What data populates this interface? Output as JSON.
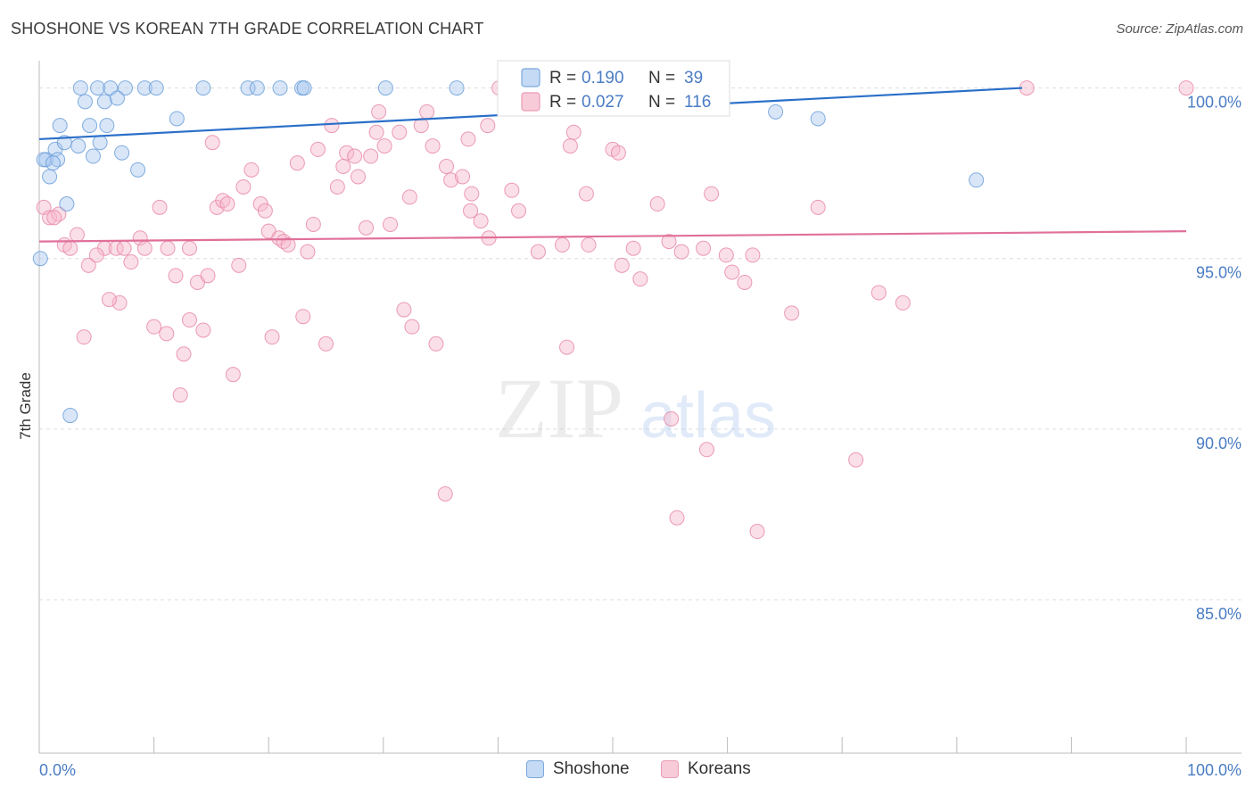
{
  "title": "SHOSHONE VS KOREAN 7TH GRADE CORRELATION CHART",
  "source": "Source: ZipAtlas.com",
  "watermark": {
    "zip": "ZIP",
    "atlas": "atlas"
  },
  "colors": {
    "shoshone_fill": "#a9c8f0",
    "shoshone_stroke": "#6c9fd8",
    "shoshone_line": "#2a6fc9",
    "korean_fill": "#f6b8cc",
    "korean_stroke": "#e889a8",
    "korean_line": "#e0709a",
    "tick_label": "#4a7cc4",
    "grid": "#dddddd"
  },
  "legend_top": [
    {
      "series": "shoshone",
      "r_label": "R =",
      "r_value": "0.190",
      "n_label": "N =",
      "n_value": "39"
    },
    {
      "series": "korean",
      "r_label": "R =",
      "r_value": "0.027",
      "n_label": "N =",
      "n_value": "116"
    }
  ],
  "legend_bottom": [
    {
      "series": "shoshone",
      "label": "Shoshone"
    },
    {
      "series": "korean",
      "label": "Koreans"
    }
  ],
  "chart_data": {
    "type": "scatter",
    "title": "SHOSHONE VS KOREAN 7TH GRADE CORRELATION CHART",
    "xlabel": "",
    "ylabel": "7th Grade",
    "xlim": [
      0,
      100
    ],
    "ylim": [
      80.5,
      100.8
    ],
    "x_tick_labels": [
      {
        "value": 0,
        "label": "0.0%"
      },
      {
        "value": 100,
        "label": "100.0%"
      }
    ],
    "y_tick_labels": [
      {
        "value": 100,
        "label": "100.0%"
      },
      {
        "value": 95,
        "label": "95.0%"
      },
      {
        "value": 90,
        "label": "90.0%"
      },
      {
        "value": 85,
        "label": "85.0%"
      }
    ],
    "grid": true,
    "legend_position": "top-center",
    "series": [
      {
        "name": "Shoshone",
        "r": 0.19,
        "n": 39,
        "trend": {
          "x": [
            0,
            85.7
          ],
          "y": [
            98.5,
            100.0
          ]
        },
        "points": [
          [
            3.6,
            100.0
          ],
          [
            5.1,
            100.0
          ],
          [
            6.2,
            100.0
          ],
          [
            7.5,
            100.0
          ],
          [
            9.2,
            100.0
          ],
          [
            10.2,
            100.0
          ],
          [
            14.3,
            100.0
          ],
          [
            18.2,
            100.0
          ],
          [
            19.0,
            100.0
          ],
          [
            21.0,
            100.0
          ],
          [
            22.9,
            100.0
          ],
          [
            23.1,
            100.0
          ],
          [
            30.2,
            100.0
          ],
          [
            36.4,
            100.0
          ],
          [
            4.0,
            99.6
          ],
          [
            5.7,
            99.6
          ],
          [
            6.8,
            99.7
          ],
          [
            12.0,
            99.1
          ],
          [
            64.2,
            99.3
          ],
          [
            67.9,
            99.1
          ],
          [
            1.8,
            98.9
          ],
          [
            4.4,
            98.9
          ],
          [
            5.9,
            98.9
          ],
          [
            1.4,
            98.2
          ],
          [
            2.2,
            98.4
          ],
          [
            3.4,
            98.3
          ],
          [
            5.3,
            98.4
          ],
          [
            0.6,
            97.9
          ],
          [
            1.6,
            97.9
          ],
          [
            4.7,
            98.0
          ],
          [
            7.2,
            98.1
          ],
          [
            8.6,
            97.6
          ],
          [
            0.9,
            97.4
          ],
          [
            81.7,
            97.3
          ],
          [
            2.4,
            96.6
          ],
          [
            0.1,
            95.0
          ],
          [
            2.7,
            90.4
          ],
          [
            0.4,
            97.9
          ],
          [
            1.2,
            97.8
          ]
        ]
      },
      {
        "name": "Koreans",
        "r": 0.027,
        "n": 116,
        "trend": {
          "x": [
            0,
            100
          ],
          "y": [
            95.5,
            95.8
          ]
        },
        "points": [
          [
            0.4,
            96.5
          ],
          [
            0.9,
            96.2
          ],
          [
            1.7,
            96.3
          ],
          [
            1.3,
            96.2
          ],
          [
            2.2,
            95.4
          ],
          [
            2.7,
            95.3
          ],
          [
            3.3,
            95.7
          ],
          [
            4.3,
            94.8
          ],
          [
            5.7,
            95.3
          ],
          [
            6.7,
            95.3
          ],
          [
            7.4,
            95.3
          ],
          [
            8.0,
            94.9
          ],
          [
            8.8,
            95.6
          ],
          [
            9.2,
            95.3
          ],
          [
            10.0,
            93.0
          ],
          [
            10.5,
            96.5
          ],
          [
            11.1,
            92.8
          ],
          [
            11.2,
            95.3
          ],
          [
            11.9,
            94.5
          ],
          [
            12.3,
            91.0
          ],
          [
            12.6,
            92.2
          ],
          [
            13.1,
            93.2
          ],
          [
            13.1,
            95.3
          ],
          [
            13.8,
            94.3
          ],
          [
            14.3,
            92.9
          ],
          [
            14.7,
            94.5
          ],
          [
            15.1,
            98.4
          ],
          [
            15.5,
            96.5
          ],
          [
            16.0,
            96.7
          ],
          [
            16.4,
            96.6
          ],
          [
            16.9,
            91.6
          ],
          [
            17.4,
            94.8
          ],
          [
            17.8,
            97.1
          ],
          [
            18.5,
            97.6
          ],
          [
            19.3,
            96.6
          ],
          [
            19.7,
            96.4
          ],
          [
            20.0,
            95.8
          ],
          [
            20.3,
            92.7
          ],
          [
            20.9,
            95.6
          ],
          [
            21.3,
            95.5
          ],
          [
            21.7,
            95.4
          ],
          [
            22.5,
            97.8
          ],
          [
            23.0,
            93.3
          ],
          [
            23.4,
            95.2
          ],
          [
            23.9,
            96.0
          ],
          [
            24.3,
            98.2
          ],
          [
            25.0,
            92.5
          ],
          [
            25.5,
            98.9
          ],
          [
            26.0,
            97.1
          ],
          [
            26.5,
            97.7
          ],
          [
            26.8,
            98.1
          ],
          [
            27.5,
            98.0
          ],
          [
            27.8,
            97.4
          ],
          [
            28.5,
            95.9
          ],
          [
            28.9,
            98.0
          ],
          [
            29.4,
            98.7
          ],
          [
            29.6,
            99.3
          ],
          [
            30.1,
            98.3
          ],
          [
            30.6,
            96.0
          ],
          [
            31.4,
            98.7
          ],
          [
            31.8,
            93.5
          ],
          [
            32.3,
            96.8
          ],
          [
            32.5,
            93.0
          ],
          [
            33.3,
            98.9
          ],
          [
            33.8,
            99.3
          ],
          [
            34.3,
            98.3
          ],
          [
            34.6,
            92.5
          ],
          [
            35.5,
            97.7
          ],
          [
            35.9,
            97.3
          ],
          [
            36.9,
            97.4
          ],
          [
            37.4,
            98.5
          ],
          [
            37.7,
            96.9
          ],
          [
            37.6,
            96.4
          ],
          [
            38.5,
            96.1
          ],
          [
            39.1,
            98.9
          ],
          [
            39.2,
            95.6
          ],
          [
            40.1,
            100.0
          ],
          [
            41.2,
            97.0
          ],
          [
            41.8,
            96.4
          ],
          [
            43.5,
            95.2
          ],
          [
            45.6,
            95.4
          ],
          [
            46.0,
            92.4
          ],
          [
            46.3,
            98.3
          ],
          [
            46.6,
            98.7
          ],
          [
            47.7,
            96.9
          ],
          [
            47.9,
            95.4
          ],
          [
            50.0,
            98.2
          ],
          [
            50.5,
            98.1
          ],
          [
            50.8,
            94.8
          ],
          [
            51.8,
            95.3
          ],
          [
            52.4,
            94.4
          ],
          [
            53.9,
            96.6
          ],
          [
            54.9,
            95.5
          ],
          [
            55.1,
            90.3
          ],
          [
            55.6,
            87.4
          ],
          [
            56.0,
            95.2
          ],
          [
            57.9,
            95.3
          ],
          [
            58.2,
            89.4
          ],
          [
            58.6,
            96.9
          ],
          [
            59.9,
            95.1
          ],
          [
            60.4,
            94.6
          ],
          [
            61.5,
            94.3
          ],
          [
            62.2,
            95.1
          ],
          [
            62.6,
            87.0
          ],
          [
            65.6,
            93.4
          ],
          [
            67.9,
            96.5
          ],
          [
            71.2,
            89.1
          ],
          [
            73.2,
            94.0
          ],
          [
            75.3,
            93.7
          ],
          [
            86.1,
            100.0
          ],
          [
            100.0,
            100.0
          ],
          [
            35.4,
            88.1
          ],
          [
            7.0,
            93.7
          ],
          [
            6.1,
            93.8
          ],
          [
            3.9,
            92.7
          ],
          [
            5.0,
            95.1
          ]
        ]
      }
    ]
  }
}
